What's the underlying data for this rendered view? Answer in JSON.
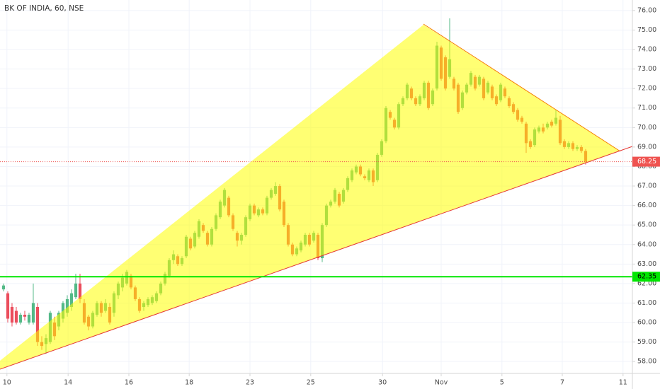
{
  "chart_data": {
    "type": "candlestick",
    "title": "BK OF INDIA, 60, NSE",
    "up_color": "#53b987",
    "down_color": "#eb4d5c",
    "xlim": [
      -0.83,
      148
    ],
    "ylim": [
      57.39,
      76.54
    ],
    "grid": true,
    "xticks": [
      {
        "value": 0.8,
        "label": "10"
      },
      {
        "value": 15.2,
        "label": "14"
      },
      {
        "value": 29.5,
        "label": "16"
      },
      {
        "value": 43.7,
        "label": "18"
      },
      {
        "value": 58,
        "label": "23"
      },
      {
        "value": 72.3,
        "label": "25"
      },
      {
        "value": 89.2,
        "label": "30"
      },
      {
        "value": 103,
        "label": "Nov"
      },
      {
        "value": 117.3,
        "label": "5"
      },
      {
        "value": 131.5,
        "label": "7"
      },
      {
        "value": 145.8,
        "label": "11"
      }
    ],
    "yticks": [
      {
        "value": 58,
        "label": "58.00"
      },
      {
        "value": 59,
        "label": "59.00"
      },
      {
        "value": 60,
        "label": "60.00"
      },
      {
        "value": 61,
        "label": "61.00"
      },
      {
        "value": 62,
        "label": "62.00"
      },
      {
        "value": 63,
        "label": "63.00"
      },
      {
        "value": 64,
        "label": "64.00"
      },
      {
        "value": 65,
        "label": "65.00"
      },
      {
        "value": 66,
        "label": "66.00"
      },
      {
        "value": 67,
        "label": "67.00"
      },
      {
        "value": 68,
        "label": "68.00"
      },
      {
        "value": 69,
        "label": "69.00"
      },
      {
        "value": 70,
        "label": "70.00"
      },
      {
        "value": 71,
        "label": "71.00"
      },
      {
        "value": 72,
        "label": "72.00"
      },
      {
        "value": 73,
        "label": "73.00"
      },
      {
        "value": 74,
        "label": "74.00"
      },
      {
        "value": 75,
        "label": "75.00"
      },
      {
        "value": 76,
        "label": "76.00"
      }
    ],
    "price_lines": [
      {
        "value": 68.25,
        "color": "#ef5350"
      },
      {
        "value": 62.35,
        "color": "#00e600"
      }
    ],
    "candles": [
      [
        61.7,
        62.0,
        61.6,
        61.9
      ],
      [
        61.5,
        61.6,
        60.0,
        60.2
      ],
      [
        60.8,
        61.0,
        59.8,
        60.0
      ],
      [
        60.6,
        60.8,
        59.9,
        60.0
      ],
      [
        60.0,
        60.5,
        59.9,
        60.4
      ],
      [
        60.4,
        60.6,
        60.1,
        60.3
      ],
      [
        60.0,
        60.5,
        59.9,
        60.4
      ],
      [
        60.0,
        62.0,
        59.9,
        61.0
      ],
      [
        60.8,
        61.0,
        58.8,
        59.0
      ],
      [
        59.0,
        59.3,
        58.6,
        58.8
      ],
      [
        58.9,
        59.4,
        58.4,
        59.2
      ],
      [
        59.0,
        60.6,
        58.9,
        60.5
      ],
      [
        60.0,
        60.3,
        59.1,
        59.3
      ],
      [
        59.8,
        60.6,
        59.6,
        60.5
      ],
      [
        60.2,
        61.1,
        60.0,
        61.0
      ],
      [
        60.5,
        61.4,
        60.3,
        61.2
      ],
      [
        60.8,
        61.7,
        60.6,
        61.5
      ],
      [
        61.3,
        62.5,
        61.2,
        62.0
      ],
      [
        62.0,
        62.5,
        61.0,
        61.2
      ],
      [
        61.0,
        61.2,
        59.9,
        60.0
      ],
      [
        60.3,
        60.4,
        59.6,
        59.8
      ],
      [
        59.8,
        60.6,
        59.7,
        60.5
      ],
      [
        60.4,
        61.1,
        60.3,
        61.0
      ],
      [
        61.0,
        61.1,
        60.3,
        60.5
      ],
      [
        60.6,
        61.2,
        60.5,
        61.0
      ],
      [
        60.8,
        61.0,
        59.9,
        60.0
      ],
      [
        60.5,
        61.6,
        60.3,
        61.5
      ],
      [
        61.4,
        62.1,
        61.2,
        62.0
      ],
      [
        61.8,
        62.5,
        61.6,
        62.3
      ],
      [
        62.0,
        62.7,
        61.9,
        62.6
      ],
      [
        62.4,
        62.5,
        61.7,
        61.8
      ],
      [
        61.8,
        61.9,
        61.1,
        61.2
      ],
      [
        61.2,
        61.3,
        60.5,
        60.6
      ],
      [
        60.8,
        61.1,
        60.6,
        61.0
      ],
      [
        60.9,
        61.3,
        60.8,
        61.2
      ],
      [
        61.0,
        61.4,
        60.9,
        61.3
      ],
      [
        61.1,
        61.6,
        61.0,
        61.5
      ],
      [
        61.5,
        62.1,
        61.4,
        62.0
      ],
      [
        62.0,
        62.6,
        61.9,
        62.5
      ],
      [
        62.4,
        63.3,
        62.3,
        63.2
      ],
      [
        63.2,
        63.7,
        63.0,
        63.5
      ],
      [
        63.4,
        63.5,
        62.9,
        63.0
      ],
      [
        63.0,
        63.4,
        62.9,
        63.3
      ],
      [
        63.4,
        64.5,
        63.3,
        64.4
      ],
      [
        64.3,
        64.4,
        63.7,
        63.8
      ],
      [
        63.9,
        64.7,
        63.8,
        64.6
      ],
      [
        64.4,
        65.3,
        64.3,
        65.2
      ],
      [
        65.0,
        65.1,
        64.6,
        64.7
      ],
      [
        64.6,
        64.7,
        63.9,
        64.0
      ],
      [
        64.0,
        64.9,
        63.9,
        64.8
      ],
      [
        64.8,
        65.6,
        64.7,
        65.5
      ],
      [
        65.4,
        66.3,
        65.3,
        66.2
      ],
      [
        66.0,
        66.9,
        65.9,
        66.8
      ],
      [
        66.4,
        66.5,
        65.4,
        65.5
      ],
      [
        65.5,
        65.6,
        64.7,
        64.8
      ],
      [
        64.6,
        64.7,
        63.9,
        64.2
      ],
      [
        64.2,
        64.6,
        64.0,
        64.5
      ],
      [
        64.5,
        65.5,
        64.4,
        65.4
      ],
      [
        65.3,
        66.1,
        65.2,
        66.0
      ],
      [
        66.0,
        66.1,
        65.5,
        65.6
      ],
      [
        65.5,
        65.9,
        65.4,
        65.8
      ],
      [
        65.8,
        65.9,
        65.5,
        65.6
      ],
      [
        65.6,
        66.5,
        65.5,
        66.4
      ],
      [
        66.4,
        66.9,
        66.3,
        66.8
      ],
      [
        66.6,
        67.2,
        66.5,
        67.0
      ],
      [
        67.0,
        67.1,
        65.7,
        65.8
      ],
      [
        66.2,
        66.3,
        64.9,
        65.0
      ],
      [
        65.0,
        65.1,
        63.9,
        64.0
      ],
      [
        64.0,
        64.1,
        63.4,
        63.5
      ],
      [
        63.5,
        63.9,
        63.4,
        63.8
      ],
      [
        63.7,
        64.2,
        63.6,
        64.1
      ],
      [
        64.0,
        64.6,
        63.9,
        64.5
      ],
      [
        64.5,
        64.6,
        63.9,
        64.0
      ],
      [
        64.2,
        64.7,
        64.1,
        64.6
      ],
      [
        64.5,
        64.6,
        63.2,
        63.3
      ],
      [
        63.3,
        65.1,
        63.1,
        65.0
      ],
      [
        65.0,
        66.1,
        64.9,
        66.0
      ],
      [
        66.0,
        66.3,
        65.9,
        66.2
      ],
      [
        66.2,
        66.9,
        66.1,
        66.8
      ],
      [
        66.6,
        66.7,
        65.9,
        66.0
      ],
      [
        66.2,
        66.9,
        66.1,
        66.8
      ],
      [
        66.8,
        67.5,
        66.7,
        67.4
      ],
      [
        67.3,
        67.9,
        67.2,
        67.8
      ],
      [
        67.7,
        68.1,
        67.6,
        68.0
      ],
      [
        68.0,
        68.1,
        67.5,
        67.6
      ],
      [
        67.5,
        67.6,
        67.3,
        67.4
      ],
      [
        67.3,
        67.9,
        67.2,
        67.8
      ],
      [
        67.8,
        67.9,
        67.0,
        67.2
      ],
      [
        67.3,
        68.7,
        67.2,
        68.6
      ],
      [
        68.6,
        69.4,
        68.5,
        69.3
      ],
      [
        69.3,
        71.1,
        69.2,
        71.0
      ],
      [
        70.8,
        70.9,
        70.4,
        70.5
      ],
      [
        70.4,
        70.5,
        69.9,
        70.0
      ],
      [
        70.0,
        71.3,
        69.9,
        71.2
      ],
      [
        71.2,
        71.6,
        71.1,
        71.5
      ],
      [
        71.5,
        72.3,
        71.4,
        72.2
      ],
      [
        72.0,
        72.1,
        71.4,
        71.5
      ],
      [
        71.5,
        71.6,
        71.1,
        71.2
      ],
      [
        71.2,
        71.7,
        71.1,
        71.6
      ],
      [
        71.5,
        72.4,
        71.4,
        72.3
      ],
      [
        72.3,
        72.4,
        70.9,
        71.0
      ],
      [
        71.2,
        72.0,
        71.1,
        71.9
      ],
      [
        72.0,
        74.4,
        71.9,
        74.2
      ],
      [
        74.1,
        74.2,
        72.4,
        72.5
      ],
      [
        73.6,
        73.7,
        71.9,
        72.0
      ],
      [
        72.6,
        75.6,
        72.5,
        73.5
      ],
      [
        72.5,
        72.6,
        71.9,
        72.0
      ],
      [
        72.2,
        72.3,
        70.7,
        70.8
      ],
      [
        71.0,
        71.9,
        70.9,
        71.8
      ],
      [
        71.8,
        72.3,
        71.7,
        72.2
      ],
      [
        72.2,
        72.9,
        72.1,
        72.8
      ],
      [
        72.6,
        72.7,
        71.9,
        72.0
      ],
      [
        72.2,
        72.7,
        72.1,
        72.6
      ],
      [
        72.5,
        72.6,
        71.4,
        71.5
      ],
      [
        71.8,
        72.4,
        71.7,
        72.3
      ],
      [
        72.1,
        72.2,
        71.4,
        71.5
      ],
      [
        71.6,
        71.7,
        71.1,
        71.2
      ],
      [
        71.4,
        72.3,
        71.3,
        72.2
      ],
      [
        72.0,
        72.1,
        71.5,
        71.6
      ],
      [
        71.5,
        71.6,
        71.0,
        71.1
      ],
      [
        71.2,
        71.3,
        70.7,
        70.8
      ],
      [
        70.9,
        71.0,
        70.3,
        70.4
      ],
      [
        70.5,
        70.6,
        70.2,
        70.3
      ],
      [
        70.2,
        70.3,
        68.7,
        69.2
      ],
      [
        69.3,
        69.4,
        68.9,
        69.0
      ],
      [
        69.1,
        70.0,
        69.0,
        69.9
      ],
      [
        69.8,
        70.1,
        69.7,
        70.0
      ],
      [
        70.0,
        70.2,
        69.7,
        69.8
      ],
      [
        70.0,
        70.3,
        69.9,
        70.2
      ],
      [
        70.3,
        70.4,
        70.0,
        70.1
      ],
      [
        70.2,
        70.9,
        70.1,
        70.5
      ],
      [
        70.4,
        70.6,
        69.1,
        69.2
      ],
      [
        69.3,
        69.4,
        68.9,
        69.0
      ],
      [
        69.0,
        69.3,
        68.9,
        69.2
      ],
      [
        69.2,
        69.3,
        68.8,
        68.9
      ],
      [
        68.9,
        69.1,
        68.8,
        69.0
      ],
      [
        69.0,
        69.1,
        68.7,
        68.8
      ],
      [
        68.8,
        68.9,
        68.1,
        68.25
      ]
    ]
  }
}
